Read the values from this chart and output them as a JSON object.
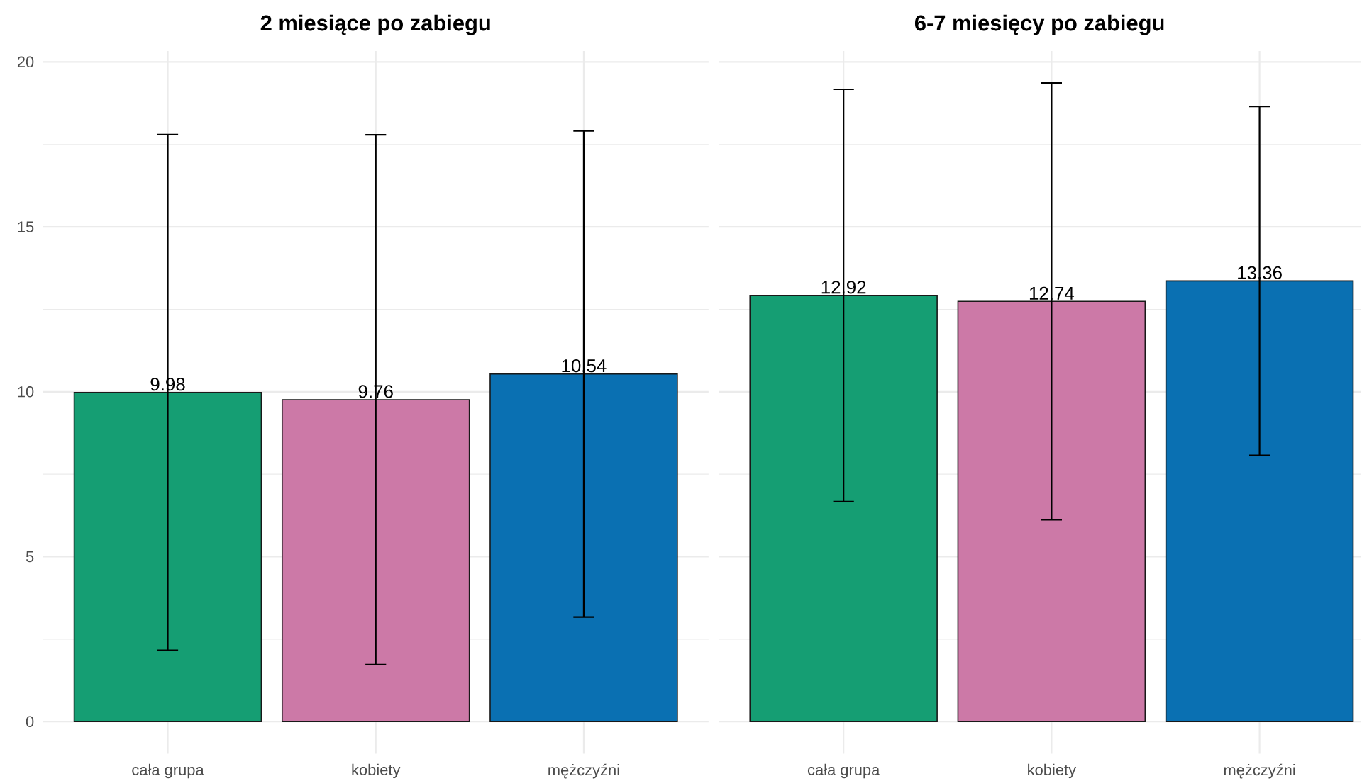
{
  "chart_data": [
    {
      "type": "bar",
      "title": "2 miesiące po zabiegu",
      "categories": [
        "cała grupa",
        "kobiety",
        "mężczyźni"
      ],
      "values": [
        9.98,
        9.76,
        10.54
      ],
      "colors": [
        "#159e73",
        "#cc79a7",
        "#0a70b2"
      ],
      "errors": [
        7.82,
        8.03,
        7.37
      ],
      "ylim": [
        -0.97,
        20.33
      ],
      "yticks": [
        0,
        5,
        10,
        15,
        20
      ],
      "grid": true,
      "data_labels": true
    },
    {
      "type": "bar",
      "title": "6-7 miesięcy po zabiegu",
      "categories": [
        "cała grupa",
        "kobiety",
        "mężczyźni"
      ],
      "values": [
        12.92,
        12.74,
        13.36
      ],
      "colors": [
        "#159e73",
        "#cc79a7",
        "#0a70b2"
      ],
      "errors": [
        6.25,
        6.62,
        5.29
      ],
      "ylim": [
        -0.97,
        20.33
      ],
      "yticks": [
        0,
        5,
        10,
        15,
        20
      ],
      "grid": true,
      "data_labels": true,
      "tick_labels": "x"
    }
  ]
}
